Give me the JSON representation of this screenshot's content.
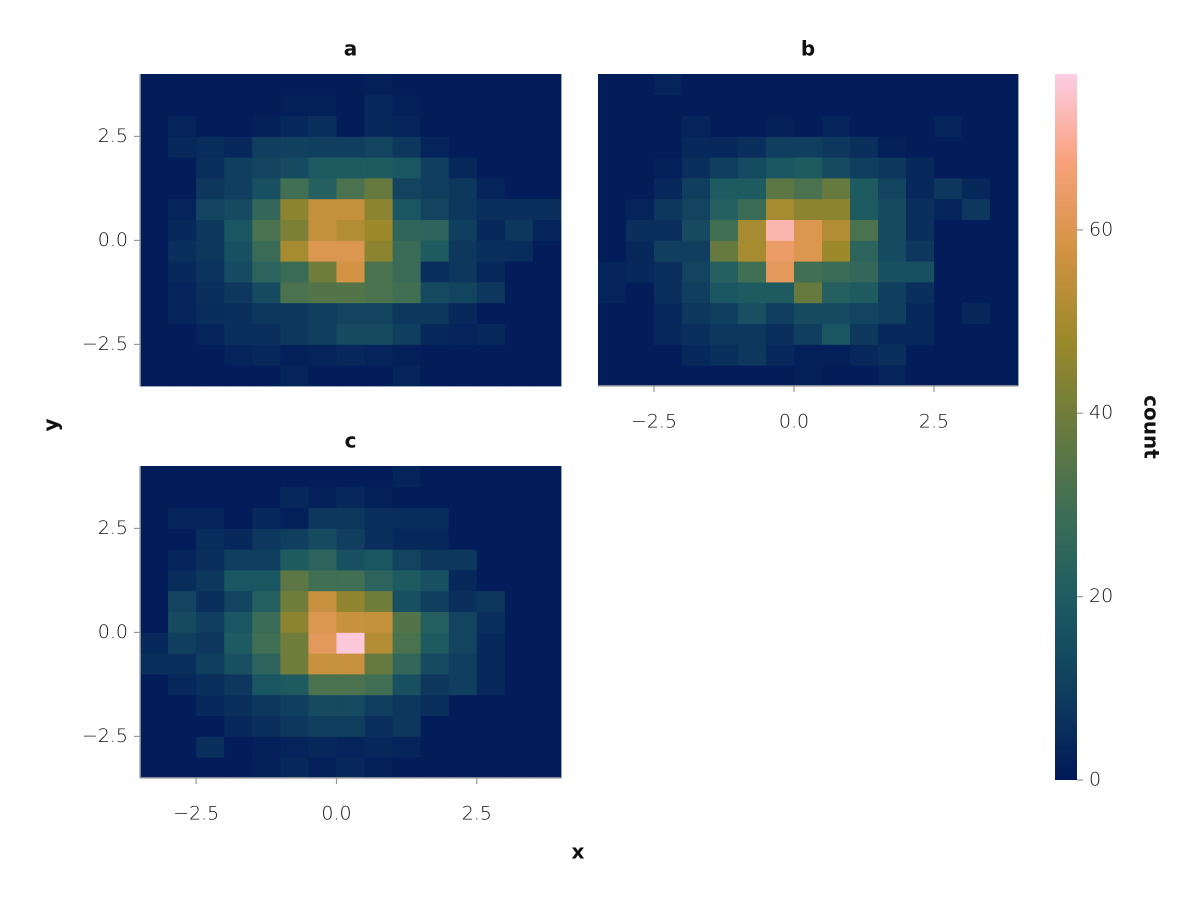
{
  "chart_data": [
    {
      "type": "heatmap",
      "title": "a",
      "xbins": [
        -3.5,
        -3,
        -2.5,
        -2,
        -1.5,
        -1,
        -0.5,
        0,
        0.5,
        1,
        1.5,
        2,
        2.5,
        3,
        3.5,
        4
      ],
      "ybins": [
        -3.5,
        -3,
        -2.5,
        -2,
        -1.5,
        -1,
        -0.5,
        0,
        0.5,
        1,
        1.5,
        2,
        2.5,
        3,
        3.5,
        4
      ],
      "xlim": [
        -3.5,
        4
      ],
      "ylim": [
        -3.5,
        4
      ],
      "yticks": [
        {
          "value": -2.5,
          "label": "−2.5"
        },
        {
          "value": 0,
          "label": "0.0"
        },
        2.5
      ],
      "z": [
        [
          1,
          1,
          1,
          1,
          1,
          3,
          1,
          1,
          1,
          3,
          1,
          1,
          1,
          1,
          1
        ],
        [
          1,
          1,
          1,
          3,
          4,
          2,
          3,
          4,
          3,
          2,
          1,
          1,
          1,
          1,
          1
        ],
        [
          1,
          1,
          3,
          6,
          6,
          8,
          10,
          14,
          14,
          10,
          4,
          3,
          4,
          1,
          1
        ],
        [
          1,
          3,
          5,
          6,
          8,
          8,
          10,
          12,
          12,
          8,
          8,
          4,
          1,
          1,
          1
        ],
        [
          1,
          3,
          6,
          8,
          14,
          32,
          34,
          34,
          32,
          30,
          14,
          12,
          8,
          1,
          1
        ],
        [
          1,
          4,
          7,
          14,
          24,
          28,
          40,
          58,
          32,
          28,
          6,
          8,
          4,
          1,
          1
        ],
        [
          1,
          6,
          8,
          16,
          28,
          50,
          60,
          60,
          45,
          28,
          20,
          8,
          6,
          5,
          1
        ],
        [
          1,
          4,
          8,
          18,
          32,
          42,
          55,
          52,
          48,
          25,
          24,
          10,
          4,
          8,
          3
        ],
        [
          1,
          3,
          12,
          14,
          26,
          45,
          55,
          55,
          45,
          18,
          12,
          8,
          6,
          6,
          6
        ],
        [
          1,
          1,
          8,
          10,
          16,
          30,
          22,
          32,
          38,
          12,
          10,
          8,
          3,
          1,
          1
        ],
        [
          1,
          1,
          6,
          10,
          12,
          14,
          20,
          20,
          20,
          18,
          10,
          4,
          1,
          1,
          1
        ],
        [
          1,
          4,
          5,
          4,
          10,
          11,
          10,
          10,
          12,
          8,
          3,
          1,
          1,
          1,
          1
        ],
        [
          1,
          3,
          1,
          1,
          2,
          4,
          6,
          1,
          4,
          3,
          1,
          1,
          1,
          1,
          1
        ],
        [
          1,
          1,
          1,
          1,
          1,
          2,
          2,
          1,
          4,
          2,
          1,
          1,
          1,
          1,
          1
        ],
        [
          1,
          1,
          1,
          1,
          1,
          1,
          1,
          1,
          2,
          1,
          1,
          1,
          1,
          1,
          1
        ]
      ]
    },
    {
      "type": "heatmap",
      "title": "b",
      "xbins": [
        -3.5,
        -3,
        -2.5,
        -2,
        -1.5,
        -1,
        -0.5,
        0,
        0.5,
        1,
        1.5,
        2,
        2.5,
        3,
        3.5,
        4
      ],
      "ybins": [
        -3.5,
        -3,
        -2.5,
        -2,
        -1.5,
        -1,
        -0.5,
        0,
        0.5,
        1,
        1.5,
        2,
        2.5,
        3,
        3.5,
        4
      ],
      "xlim": [
        -3.5,
        4
      ],
      "ylim": [
        -3.5,
        4
      ],
      "xticks": [
        {
          "value": -2.5,
          "label": "−2.5"
        },
        {
          "value": 0,
          "label": "0.0"
        },
        2.5
      ],
      "z": [
        [
          1,
          1,
          1,
          1,
          1,
          1,
          1,
          2,
          1,
          1,
          3,
          1,
          1,
          1,
          1
        ],
        [
          1,
          1,
          1,
          4,
          6,
          8,
          4,
          2,
          2,
          4,
          6,
          1,
          1,
          1,
          1
        ],
        [
          1,
          1,
          4,
          6,
          8,
          8,
          6,
          10,
          18,
          8,
          4,
          4,
          1,
          1,
          1
        ],
        [
          1,
          1,
          4,
          8,
          10,
          16,
          10,
          14,
          14,
          12,
          10,
          4,
          1,
          4,
          1
        ],
        [
          3,
          1,
          6,
          10,
          18,
          20,
          20,
          38,
          22,
          20,
          10,
          6,
          1,
          1,
          1
        ],
        [
          3,
          4,
          6,
          12,
          22,
          30,
          62,
          30,
          28,
          26,
          16,
          16,
          1,
          1,
          1
        ],
        [
          1,
          4,
          10,
          10,
          38,
          50,
          64,
          60,
          48,
          24,
          14,
          8,
          1,
          1,
          1
        ],
        [
          1,
          6,
          6,
          14,
          30,
          50,
          72,
          60,
          52,
          32,
          14,
          6,
          1,
          1,
          1
        ],
        [
          1,
          3,
          8,
          12,
          22,
          28,
          50,
          45,
          45,
          20,
          14,
          6,
          3,
          8,
          1
        ],
        [
          1,
          1,
          4,
          10,
          20,
          20,
          36,
          32,
          38,
          20,
          12,
          4,
          8,
          4,
          1
        ],
        [
          1,
          1,
          2,
          6,
          10,
          14,
          18,
          20,
          14,
          10,
          8,
          4,
          1,
          1,
          1
        ],
        [
          1,
          1,
          1,
          4,
          4,
          6,
          10,
          10,
          8,
          6,
          2,
          1,
          1,
          1,
          1
        ],
        [
          1,
          1,
          1,
          3,
          1,
          1,
          2,
          1,
          3,
          1,
          1,
          1,
          3,
          1,
          1
        ],
        [
          1,
          1,
          1,
          1,
          1,
          1,
          1,
          1,
          1,
          1,
          1,
          1,
          1,
          1,
          1
        ],
        [
          1,
          1,
          3,
          1,
          1,
          1,
          1,
          1,
          1,
          1,
          1,
          1,
          1,
          1,
          1
        ]
      ]
    },
    {
      "type": "heatmap",
      "title": "c",
      "xbins": [
        -3.5,
        -3,
        -2.5,
        -2,
        -1.5,
        -1,
        -0.5,
        0,
        0.5,
        1,
        1.5,
        2,
        2.5,
        3,
        3.5,
        4
      ],
      "ybins": [
        -3.5,
        -3,
        -2.5,
        -2,
        -1.5,
        -1,
        -0.5,
        0,
        0.5,
        1,
        1.5,
        2,
        2.5,
        3,
        3.5,
        4
      ],
      "xlim": [
        -3.5,
        4
      ],
      "ylim": [
        -3.5,
        4
      ],
      "xticks": [
        {
          "value": -2.5,
          "label": "−2.5"
        },
        {
          "value": 0,
          "label": "0.0"
        },
        2.5
      ],
      "yticks": [
        {
          "value": -2.5,
          "label": "−2.5"
        },
        {
          "value": 0,
          "label": "0.0"
        },
        2.5
      ],
      "z": [
        [
          1,
          1,
          1,
          1,
          2,
          4,
          2,
          4,
          2,
          1,
          1,
          1,
          1,
          1,
          1
        ],
        [
          1,
          1,
          6,
          1,
          2,
          3,
          4,
          3,
          4,
          3,
          1,
          1,
          1,
          1,
          1
        ],
        [
          1,
          1,
          1,
          4,
          6,
          8,
          10,
          10,
          6,
          8,
          1,
          1,
          1,
          1,
          1
        ],
        [
          1,
          1,
          4,
          6,
          8,
          10,
          14,
          14,
          10,
          8,
          6,
          1,
          1,
          1,
          1
        ],
        [
          1,
          4,
          6,
          8,
          18,
          20,
          32,
          32,
          30,
          16,
          8,
          10,
          4,
          1,
          1
        ],
        [
          6,
          6,
          10,
          16,
          24,
          40,
          56,
          56,
          38,
          26,
          14,
          10,
          4,
          1,
          1
        ],
        [
          4,
          10,
          8,
          20,
          30,
          40,
          62,
          76,
          52,
          32,
          20,
          12,
          4,
          1,
          1
        ],
        [
          1,
          14,
          10,
          18,
          28,
          45,
          60,
          56,
          55,
          34,
          22,
          12,
          6,
          1,
          1
        ],
        [
          1,
          12,
          6,
          12,
          22,
          40,
          56,
          46,
          40,
          16,
          10,
          6,
          8,
          1,
          1
        ],
        [
          1,
          5,
          8,
          18,
          18,
          36,
          30,
          30,
          24,
          20,
          16,
          4,
          1,
          1,
          1
        ],
        [
          1,
          3,
          6,
          10,
          10,
          20,
          24,
          16,
          18,
          12,
          8,
          8,
          1,
          1,
          1
        ],
        [
          1,
          1,
          5,
          4,
          8,
          10,
          14,
          10,
          6,
          4,
          4,
          1,
          1,
          1,
          1
        ],
        [
          1,
          3,
          3,
          1,
          4,
          2,
          8,
          8,
          6,
          5,
          5,
          1,
          1,
          1,
          1
        ],
        [
          1,
          1,
          1,
          1,
          1,
          4,
          2,
          4,
          2,
          1,
          1,
          1,
          1,
          1,
          1
        ],
        [
          1,
          1,
          1,
          1,
          1,
          1,
          1,
          1,
          1,
          3,
          1,
          1,
          1,
          1,
          1
        ]
      ]
    }
  ],
  "figure": {
    "xlabel": "x",
    "ylabel": "y",
    "colorbar": {
      "label": "count",
      "lim": [
        0,
        77
      ],
      "ticks": [
        0,
        20,
        40,
        60
      ],
      "colormap": [
        "#011959",
        "#0f3d5e",
        "#1c5a62",
        "#3c6d56",
        "#687b3e",
        "#9d892b",
        "#d29343",
        "#f8a17b",
        "#fccde5"
      ]
    }
  }
}
